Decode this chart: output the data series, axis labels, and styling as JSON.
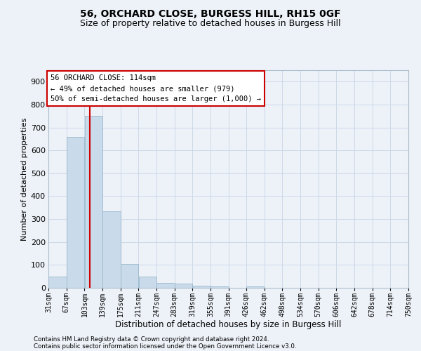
{
  "title1": "56, ORCHARD CLOSE, BURGESS HILL, RH15 0GF",
  "title2": "Size of property relative to detached houses in Burgess Hill",
  "xlabel": "Distribution of detached houses by size in Burgess Hill",
  "ylabel": "Number of detached properties",
  "footer1": "Contains HM Land Registry data © Crown copyright and database right 2024.",
  "footer2": "Contains public sector information licensed under the Open Government Licence v3.0.",
  "annotation_line1": "56 ORCHARD CLOSE: 114sqm",
  "annotation_line2": "← 49% of detached houses are smaller (979)",
  "annotation_line3": "50% of semi-detached houses are larger (1,000) →",
  "property_size": 114,
  "bar_edges": [
    31,
    67,
    103,
    139,
    175,
    211,
    247,
    283,
    319,
    355,
    391,
    426,
    462,
    498,
    534,
    570,
    606,
    642,
    678,
    714,
    750
  ],
  "bar_values": [
    50,
    660,
    750,
    335,
    105,
    50,
    22,
    17,
    10,
    6,
    0,
    7,
    0,
    0,
    0,
    0,
    0,
    0,
    0,
    0
  ],
  "bar_color": "#c9daea",
  "bar_edge_color": "#9ab8cc",
  "vline_color": "#cc0000",
  "vline_x": 114,
  "annotation_box_color": "#cc0000",
  "annotation_box_fill": "#ffffff",
  "grid_color": "#ccd8e8",
  "bg_color": "#edf2f8",
  "ylim": [
    0,
    950
  ],
  "yticks": [
    0,
    100,
    200,
    300,
    400,
    500,
    600,
    700,
    800,
    900
  ]
}
